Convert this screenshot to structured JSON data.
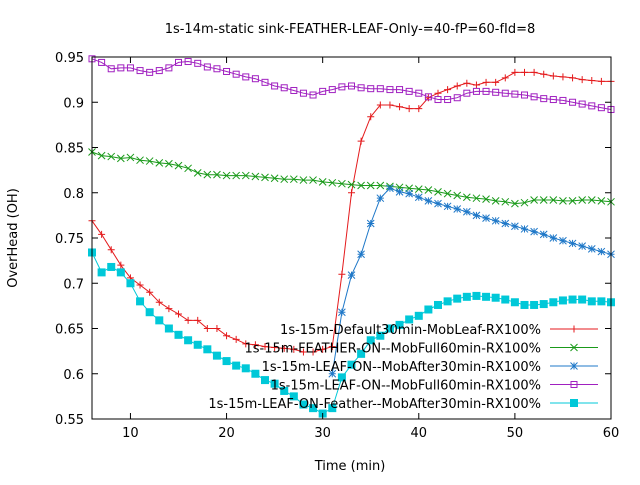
{
  "chart_data": {
    "type": "line",
    "title": "1s-14m-static sink-FEATHER-LEAF-Only-=40-fP=60-fId=8",
    "xlabel": "Time (min)",
    "ylabel": "OverHead (OH)",
    "xlim": [
      6,
      60
    ],
    "ylim": [
      0.55,
      0.95
    ],
    "xticks": [
      10,
      20,
      30,
      40,
      50,
      60
    ],
    "yticks": [
      0.55,
      0.6,
      0.65,
      0.7,
      0.75,
      0.8,
      0.85,
      0.9,
      0.95
    ],
    "grid": false,
    "legend_position": "bottom-right",
    "x": [
      6,
      7,
      8,
      9,
      10,
      11,
      12,
      13,
      14,
      15,
      16,
      17,
      18,
      19,
      20,
      21,
      22,
      23,
      24,
      25,
      26,
      27,
      28,
      29,
      30,
      31,
      32,
      33,
      34,
      35,
      36,
      37,
      38,
      39,
      40,
      41,
      42,
      43,
      44,
      45,
      46,
      47,
      48,
      49,
      50,
      51,
      52,
      53,
      54,
      55,
      56,
      57,
      58,
      59,
      60
    ],
    "series": [
      {
        "name": "1s-15m-Default30min-MobLeaf-RX100%",
        "color": "#e41a1c",
        "marker": "plus",
        "values": [
          0.769,
          0.754,
          0.737,
          0.72,
          0.706,
          0.698,
          0.69,
          0.679,
          0.672,
          0.666,
          0.659,
          0.659,
          0.65,
          0.65,
          0.642,
          0.638,
          0.633,
          0.632,
          0.63,
          0.629,
          0.628,
          0.627,
          0.624,
          0.624,
          0.627,
          0.63,
          0.71,
          0.8,
          0.857,
          0.884,
          0.897,
          0.897,
          0.895,
          0.893,
          0.893,
          0.905,
          0.91,
          0.914,
          0.918,
          0.921,
          0.919,
          0.922,
          0.922,
          0.927,
          0.933,
          0.933,
          0.933,
          0.931,
          0.929,
          0.928,
          0.927,
          0.925,
          0.924,
          0.923,
          0.923
        ]
      },
      {
        "name": "1s-15m-FEATHER-ON--MobFull60min-RX100%",
        "color": "#1a9a1a",
        "marker": "cross",
        "values": [
          0.845,
          0.841,
          0.84,
          0.838,
          0.839,
          0.836,
          0.835,
          0.833,
          0.832,
          0.83,
          0.827,
          0.822,
          0.82,
          0.82,
          0.819,
          0.819,
          0.819,
          0.818,
          0.817,
          0.816,
          0.815,
          0.815,
          0.814,
          0.814,
          0.812,
          0.811,
          0.81,
          0.809,
          0.808,
          0.808,
          0.808,
          0.807,
          0.806,
          0.805,
          0.804,
          0.803,
          0.801,
          0.799,
          0.797,
          0.795,
          0.794,
          0.793,
          0.791,
          0.79,
          0.788,
          0.789,
          0.792,
          0.792,
          0.792,
          0.791,
          0.791,
          0.792,
          0.792,
          0.791,
          0.79
        ]
      },
      {
        "name": "1s-15m-LEAF-ON--MobAfter30min-RX100%",
        "color": "#1f78c8",
        "marker": "star",
        "values": [
          null,
          null,
          null,
          null,
          null,
          null,
          null,
          null,
          null,
          null,
          null,
          null,
          null,
          null,
          null,
          null,
          null,
          null,
          null,
          null,
          null,
          null,
          null,
          null,
          null,
          0.6,
          0.668,
          0.709,
          0.732,
          0.766,
          0.794,
          0.805,
          0.801,
          0.799,
          0.795,
          0.791,
          0.788,
          0.785,
          0.782,
          0.779,
          0.775,
          0.772,
          0.769,
          0.766,
          0.763,
          0.76,
          0.757,
          0.754,
          0.75,
          0.747,
          0.744,
          0.741,
          0.738,
          0.735,
          0.732
        ]
      },
      {
        "name": "1s-15m-LEAF-ON--MobFull60min-RX100%",
        "color": "#a020c0",
        "marker": "square",
        "values": [
          0.948,
          0.944,
          0.937,
          0.938,
          0.938,
          0.935,
          0.933,
          0.935,
          0.938,
          0.944,
          0.945,
          0.943,
          0.939,
          0.937,
          0.934,
          0.931,
          0.928,
          0.926,
          0.922,
          0.918,
          0.916,
          0.913,
          0.91,
          0.908,
          0.912,
          0.914,
          0.917,
          0.918,
          0.916,
          0.915,
          0.915,
          0.914,
          0.914,
          0.912,
          0.91,
          0.906,
          0.903,
          0.903,
          0.905,
          0.91,
          0.912,
          0.912,
          0.911,
          0.91,
          0.909,
          0.908,
          0.906,
          0.904,
          0.903,
          0.902,
          0.9,
          0.898,
          0.896,
          0.894,
          0.892
        ]
      },
      {
        "name": "1s-15m-LEAF-ON-Feather--MobAfter30min-RX100%",
        "color": "#00c8d8",
        "marker": "filled-square",
        "values": [
          0.734,
          0.712,
          0.718,
          0.712,
          0.7,
          0.68,
          0.668,
          0.659,
          0.65,
          0.643,
          0.637,
          0.632,
          0.627,
          0.62,
          0.614,
          0.609,
          0.606,
          0.6,
          0.593,
          0.589,
          0.581,
          0.575,
          0.566,
          0.562,
          0.556,
          0.562,
          0.596,
          0.61,
          0.622,
          0.637,
          0.642,
          0.65,
          0.654,
          0.66,
          0.664,
          0.671,
          0.676,
          0.68,
          0.683,
          0.685,
          0.686,
          0.685,
          0.684,
          0.682,
          0.679,
          0.676,
          0.676,
          0.677,
          0.679,
          0.681,
          0.682,
          0.682,
          0.68,
          0.68,
          0.679
        ]
      }
    ]
  }
}
